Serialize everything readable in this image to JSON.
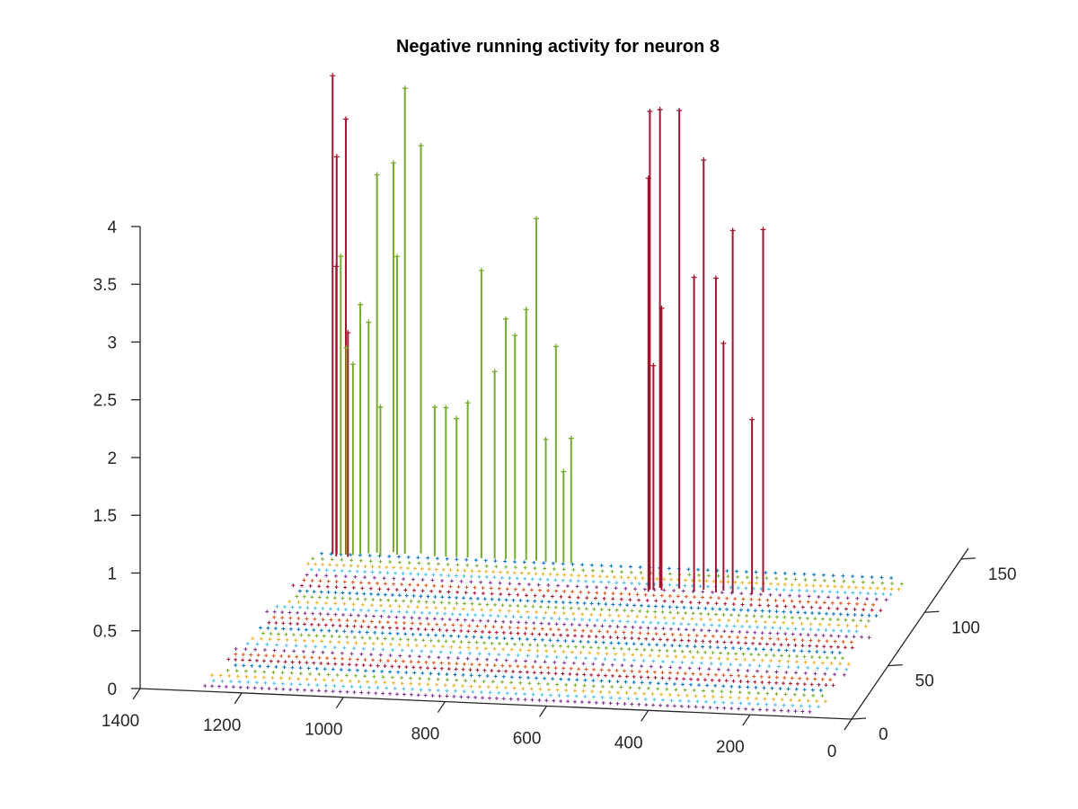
{
  "chart_data": {
    "type": "stem3",
    "title": "Negative running activity for neuron 8",
    "xlabel": "",
    "ylabel": "",
    "zlabel": "",
    "x_ticks": [
      "1400",
      "1200",
      "1000",
      "800",
      "600",
      "400",
      "200",
      "0"
    ],
    "y_ticks": [
      "0",
      "50",
      "100",
      "150"
    ],
    "z_ticks": [
      "0",
      "0.5",
      "1",
      "1.5",
      "2",
      "2.5",
      "3",
      "3.5",
      "4"
    ],
    "xlim": [
      0,
      1400
    ],
    "ylim": [
      0,
      160
    ],
    "zlim": [
      0,
      4.2
    ],
    "grid": false,
    "series": [
      {
        "color": "#a2142f",
        "points": [
          {
            "x": 1208,
            "y": 130,
            "z": 4.14
          },
          {
            "x": 1200,
            "y": 130,
            "z": 3.44
          },
          {
            "x": 1198,
            "y": 128,
            "z": 2.51
          },
          {
            "x": 1182,
            "y": 130,
            "z": 3.77
          },
          {
            "x": 1175,
            "y": 128,
            "z": 1.94
          },
          {
            "x": 555,
            "y": 110,
            "z": 4.14
          },
          {
            "x": 555,
            "y": 108,
            "z": 3.58
          },
          {
            "x": 548,
            "y": 110,
            "z": 1.94
          },
          {
            "x": 538,
            "y": 112,
            "z": 4.14
          },
          {
            "x": 532,
            "y": 110,
            "z": 2.44
          },
          {
            "x": 500,
            "y": 112,
            "z": 4.14
          },
          {
            "x": 468,
            "y": 110,
            "z": 2.72
          },
          {
            "x": 452,
            "y": 112,
            "z": 3.72
          },
          {
            "x": 425,
            "y": 110,
            "z": 2.72
          },
          {
            "x": 413,
            "y": 112,
            "z": 2.14
          },
          {
            "x": 392,
            "y": 110,
            "z": 3.14
          },
          {
            "x": 354,
            "y": 110,
            "z": 1.51
          },
          {
            "x": 335,
            "y": 112,
            "z": 3.14
          }
        ]
      },
      {
        "color": "#77ac30",
        "points": [
          {
            "x": 1192,
            "y": 130,
            "z": 2.58
          },
          {
            "x": 1181,
            "y": 130,
            "z": 1.79
          },
          {
            "x": 1168,
            "y": 130,
            "z": 1.65
          },
          {
            "x": 1155,
            "y": 131,
            "z": 2.16
          },
          {
            "x": 1140,
            "y": 132,
            "z": 2.0
          },
          {
            "x": 1125,
            "y": 133,
            "z": 3.27
          },
          {
            "x": 1114,
            "y": 130,
            "z": 1.29
          },
          {
            "x": 1094,
            "y": 134,
            "z": 3.37
          },
          {
            "x": 1084,
            "y": 132,
            "z": 2.58
          },
          {
            "x": 1070,
            "y": 133,
            "z": 4.03
          },
          {
            "x": 1040,
            "y": 134,
            "z": 3.53
          },
          {
            "x": 1010,
            "y": 132,
            "z": 1.29
          },
          {
            "x": 988,
            "y": 132,
            "z": 1.29
          },
          {
            "x": 967,
            "y": 132,
            "z": 1.2
          },
          {
            "x": 945,
            "y": 132,
            "z": 1.34
          },
          {
            "x": 918,
            "y": 132,
            "z": 2.49
          },
          {
            "x": 892,
            "y": 132,
            "z": 1.62
          },
          {
            "x": 870,
            "y": 132,
            "z": 2.08
          },
          {
            "x": 852,
            "y": 132,
            "z": 1.94
          },
          {
            "x": 830,
            "y": 132,
            "z": 2.17
          },
          {
            "x": 810,
            "y": 132,
            "z": 2.96
          },
          {
            "x": 790,
            "y": 131,
            "z": 1.06
          },
          {
            "x": 770,
            "y": 131,
            "z": 1.87
          },
          {
            "x": 755,
            "y": 131,
            "z": 0.79
          },
          {
            "x": 740,
            "y": 131,
            "z": 1.08
          }
        ]
      }
    ],
    "floor_colors": [
      "#7e2f8e",
      "#4dbeee",
      "#edb120",
      "#77ac30",
      "#0072bd",
      "#a2142f",
      "#d95319"
    ]
  }
}
